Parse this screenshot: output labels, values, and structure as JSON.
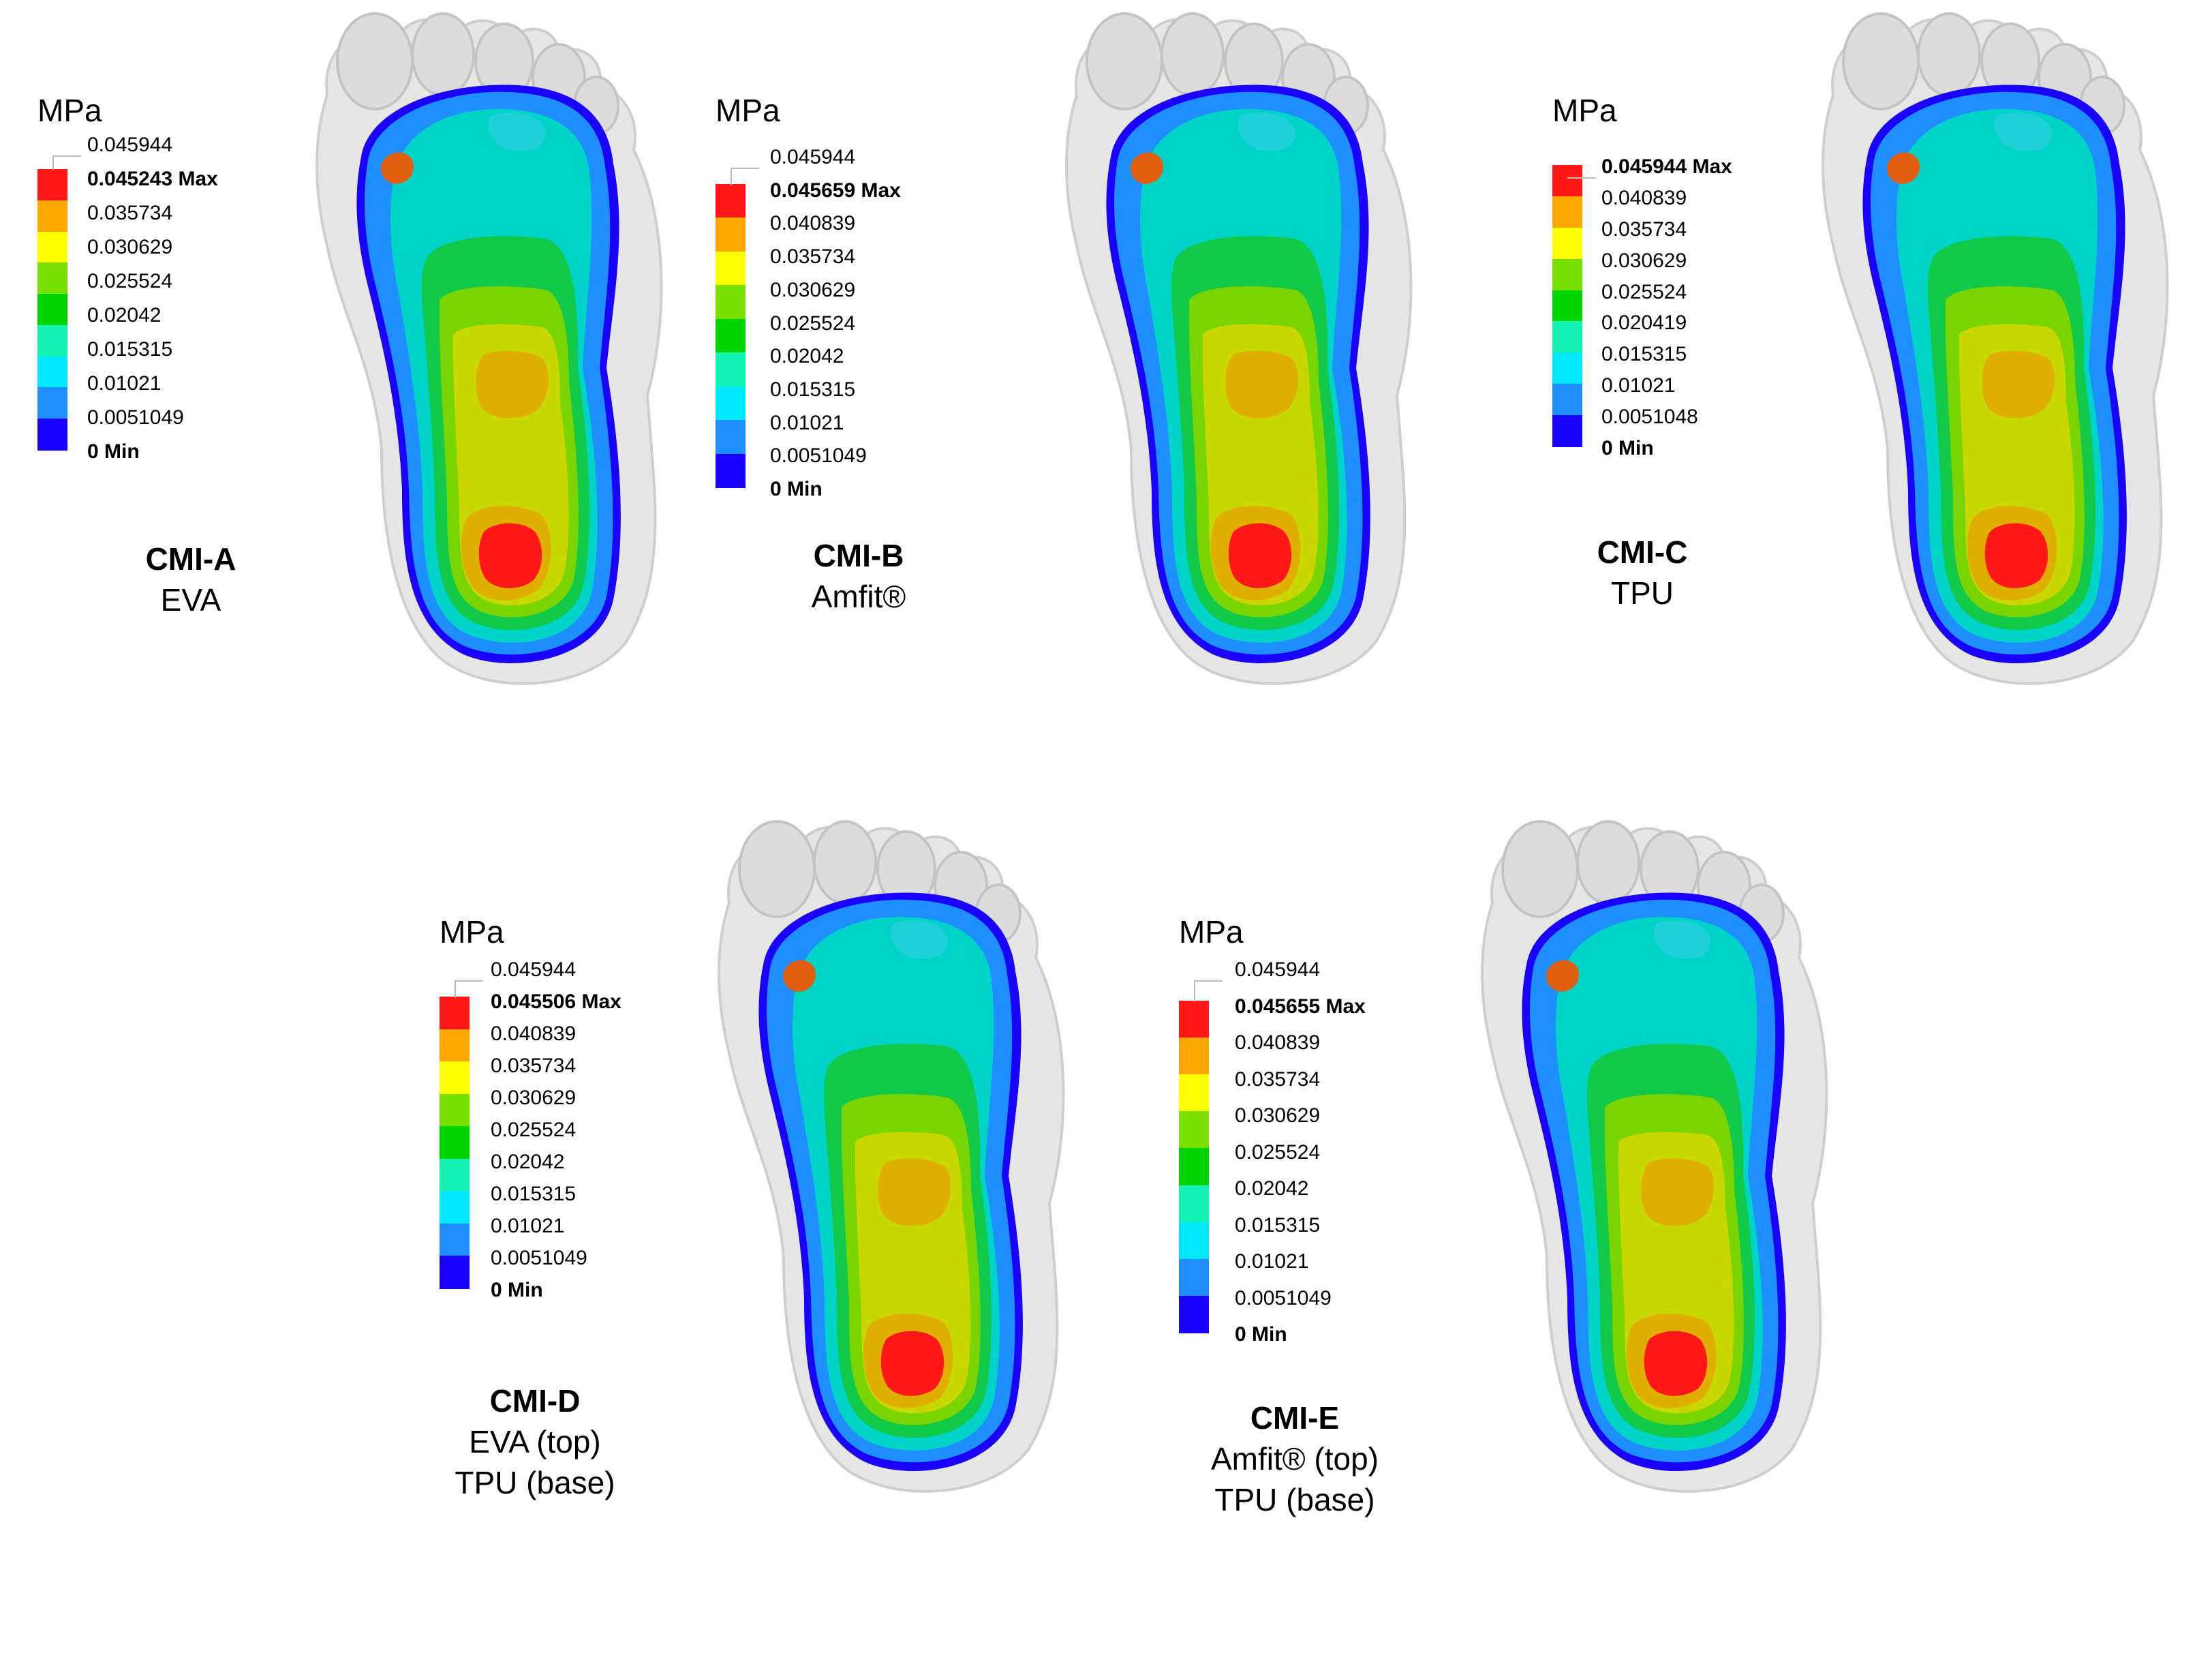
{
  "unit": "MPa",
  "colors": [
    "#1a00ff",
    "#1f8fff",
    "#00e7ff",
    "#14f2b4",
    "#00d400",
    "#7ae000",
    "#ffff00",
    "#ffa600",
    "#ff1818"
  ],
  "panels": [
    {
      "id": "CMI-A",
      "name": "CMI-A",
      "materials": [
        "EVA"
      ],
      "legend": [
        "0.045944",
        "0.045243 Max",
        "0.035734",
        "0.030629",
        "0.025524",
        "0.02042",
        "0.015315",
        "0.01021",
        "0.0051049",
        "0 Min"
      ]
    },
    {
      "id": "CMI-B",
      "name": "CMI-B",
      "materials": [
        "Amfit®"
      ],
      "legend": [
        "0.045944",
        "0.045659 Max",
        "0.040839",
        "0.035734",
        "0.030629",
        "0.025524",
        "0.02042",
        "0.015315",
        "0.01021",
        "0.0051049",
        "0 Min"
      ]
    },
    {
      "id": "CMI-C",
      "name": "CMI-C",
      "materials": [
        "TPU"
      ],
      "legend": [
        "0.045944 Max",
        "0.040839",
        "0.035734",
        "0.030629",
        "0.025524",
        "0.020419",
        "0.015315",
        "0.01021",
        "0.0051048",
        "0 Min"
      ]
    },
    {
      "id": "CMI-D",
      "name": "CMI-D",
      "materials": [
        "EVA (top)",
        "TPU (base)"
      ],
      "legend": [
        "0.045944",
        "0.045506 Max",
        "0.040839",
        "0.035734",
        "0.030629",
        "0.025524",
        "0.02042",
        "0.015315",
        "0.01021",
        "0.0051049",
        "0 Min"
      ]
    },
    {
      "id": "CMI-E",
      "name": "CMI-E",
      "materials": [
        "Amfit® (top)",
        "TPU (base)"
      ],
      "legend": [
        "0.045944",
        "0.045655 Max",
        "0.040839",
        "0.035734",
        "0.030629",
        "0.025524",
        "0.02042",
        "0.015315",
        "0.01021",
        "0.0051049",
        "0 Min"
      ]
    }
  ]
}
